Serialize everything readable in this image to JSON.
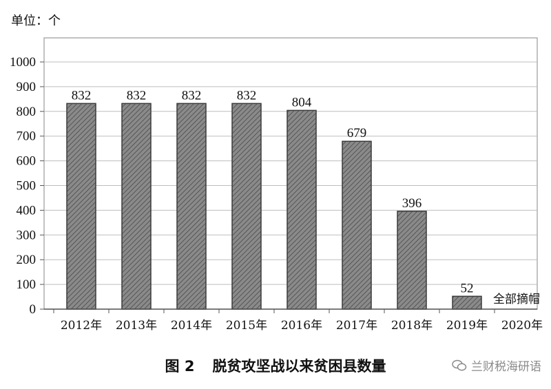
{
  "unit_label": "单位：个",
  "caption": {
    "figure_number": "图 2",
    "title": "脱贫攻坚战以来贫困县数量"
  },
  "watermark": {
    "text": "兰财税海研语"
  },
  "colors": {
    "bar_fill": "#7a7a7a",
    "bar_stroke": "#3a3a3a",
    "grid": "#bdbdbd",
    "axis": "#555555"
  },
  "chart_data": {
    "type": "bar",
    "title": "",
    "xlabel": "",
    "ylabel": "单位：个",
    "categories": [
      "2012年",
      "2013年",
      "2014年",
      "2015年",
      "2016年",
      "2017年",
      "2018年",
      "2019年",
      "2020年"
    ],
    "values": [
      832,
      832,
      832,
      832,
      804,
      679,
      396,
      52,
      0
    ],
    "data_labels": [
      "832",
      "832",
      "832",
      "832",
      "804",
      "679",
      "396",
      "52",
      ""
    ],
    "annotations": [
      {
        "category": "2020年",
        "text": "全部摘帽"
      }
    ],
    "yticks": [
      0,
      100,
      200,
      300,
      400,
      500,
      600,
      700,
      800,
      900,
      1000
    ],
    "ylim": [
      0,
      1000
    ],
    "grid": true,
    "legend": "none"
  }
}
